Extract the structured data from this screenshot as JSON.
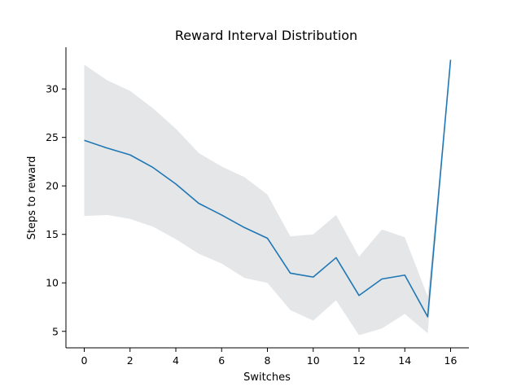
{
  "chart_data": {
    "type": "line",
    "title": "Reward Interval Distribution",
    "xlabel": "Switches",
    "ylabel": "Steps to reward",
    "xlim": [
      -0.8,
      16.8
    ],
    "ylim": [
      3.3,
      34.3
    ],
    "xticks": [
      0,
      2,
      4,
      6,
      8,
      10,
      12,
      14,
      16
    ],
    "yticks": [
      5,
      10,
      15,
      20,
      25,
      30
    ],
    "grid": false,
    "series": [
      {
        "x": [
          0,
          1,
          2,
          3,
          4,
          5,
          6,
          7,
          8,
          9,
          10,
          11,
          12,
          13,
          14,
          15,
          16
        ],
        "values": [
          24.7,
          23.9,
          23.2,
          21.9,
          20.2,
          18.2,
          17.0,
          15.7,
          14.6,
          11.0,
          10.6,
          12.6,
          8.7,
          10.4,
          10.8,
          6.5,
          33.0
        ],
        "lower": [
          16.9,
          17.0,
          16.6,
          15.8,
          14.5,
          13.0,
          12.0,
          10.5,
          10.0,
          7.2,
          6.1,
          8.2,
          4.6,
          5.3,
          6.8,
          4.8,
          33.0
        ],
        "upper": [
          32.5,
          30.9,
          29.8,
          28.0,
          25.9,
          23.4,
          22.0,
          20.9,
          19.1,
          14.8,
          15.0,
          17.0,
          12.7,
          15.5,
          14.7,
          8.6,
          33.0
        ],
        "color": "#1f77b4",
        "band_color": "#d5d9db"
      }
    ]
  }
}
